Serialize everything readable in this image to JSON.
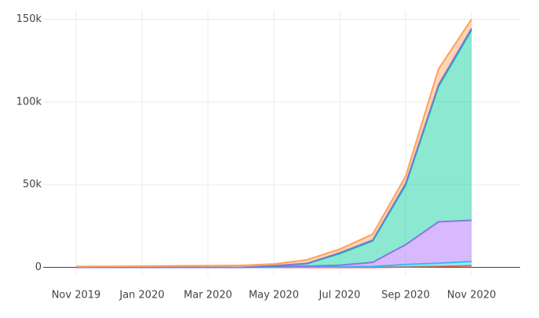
{
  "chart_data": {
    "type": "stacked-area",
    "x": [
      "Nov 2019",
      "Dec 2019",
      "Jan 2020",
      "Feb 2020",
      "Mar 2020",
      "Apr 2020",
      "May 2020",
      "Jun 2020",
      "Jul 2020",
      "Aug 2020",
      "Sep 2020",
      "Oct 2020",
      "Nov 2020"
    ],
    "xlim": [
      "Oct 2019",
      "Dec 2020"
    ],
    "xticks": [
      "Nov 2019",
      "Jan 2020",
      "Mar 2020",
      "May 2020",
      "Jul 2020",
      "Sep 2020",
      "Nov 2020"
    ],
    "ylim": [
      -5000,
      155000
    ],
    "yticks": [
      0,
      {
        "value": 50000,
        "label": "50k"
      },
      {
        "value": 100000,
        "label": "100k"
      },
      {
        "value": 150000,
        "label": "150k"
      }
    ],
    "grid": true,
    "series": [
      {
        "color": "#EF553B",
        "values": [
          0,
          0,
          0,
          0,
          0,
          0,
          0,
          0,
          0,
          0,
          200,
          500,
          1000
        ]
      },
      {
        "color": "#19d3f3",
        "values": [
          0,
          0,
          0,
          0,
          0,
          0,
          100,
          200,
          300,
          500,
          1500,
          2000,
          2500
        ]
      },
      {
        "color": "#ab63fa",
        "values": [
          0,
          0,
          0,
          0,
          0,
          0,
          300,
          500,
          1000,
          2500,
          12000,
          25000,
          25000
        ]
      },
      {
        "color": "#00cc96",
        "values": [
          0,
          0,
          0,
          0,
          0,
          0,
          500,
          1500,
          7000,
          13000,
          36000,
          82000,
          115000
        ]
      },
      {
        "color": "#636efa",
        "values": [
          0,
          0,
          0,
          0,
          0,
          0,
          100,
          200,
          500,
          500,
          1000,
          1000,
          1000
        ]
      },
      {
        "color": "#FFA15A",
        "values": [
          500,
          600,
          700,
          900,
          1000,
          1200,
          1000,
          2100,
          2200,
          3500,
          4300,
          9500,
          5500
        ]
      }
    ]
  }
}
